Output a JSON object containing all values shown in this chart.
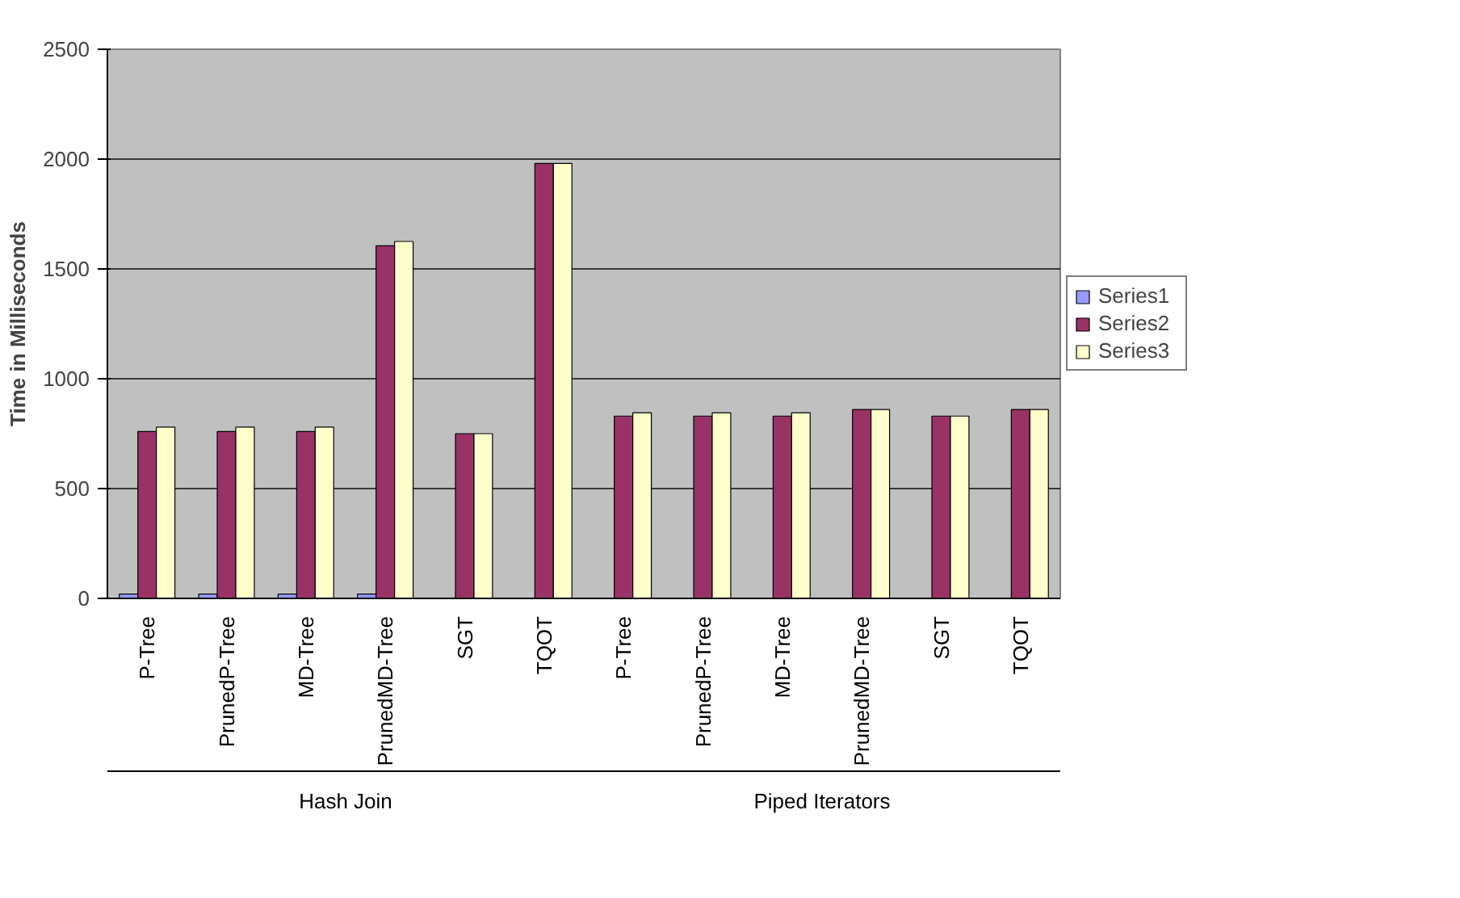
{
  "chart_data": {
    "type": "bar",
    "ylabel": "Time in Milliseconds",
    "categories": [
      "P-Tree",
      "PrunedP-Tree",
      "MD-Tree",
      "PrunedMD-Tree",
      "SGT",
      "TQOT",
      "P-Tree",
      "PrunedP-Tree",
      "MD-Tree",
      "PrunedMD-Tree",
      "SGT",
      "TQOT"
    ],
    "annotations": [
      "Hash Join",
      "Piped Iterators"
    ],
    "series": [
      {
        "name": "Series1",
        "color": "#9999ff",
        "values": [
          20,
          20,
          20,
          20,
          null,
          null,
          null,
          null,
          null,
          null,
          null,
          null
        ]
      },
      {
        "name": "Series2",
        "color": "#993366",
        "values": [
          760,
          760,
          760,
          1605,
          750,
          1980,
          830,
          830,
          830,
          860,
          830,
          860
        ]
      },
      {
        "name": "Series3",
        "color": "#ffffcc",
        "values": [
          780,
          780,
          780,
          1625,
          750,
          1980,
          845,
          845,
          845,
          860,
          830,
          860
        ]
      }
    ],
    "ylim": [
      0,
      2500
    ],
    "yticks": [
      0,
      500,
      1000,
      1500,
      2000,
      2500
    ],
    "grid": "y",
    "legend": "right"
  }
}
